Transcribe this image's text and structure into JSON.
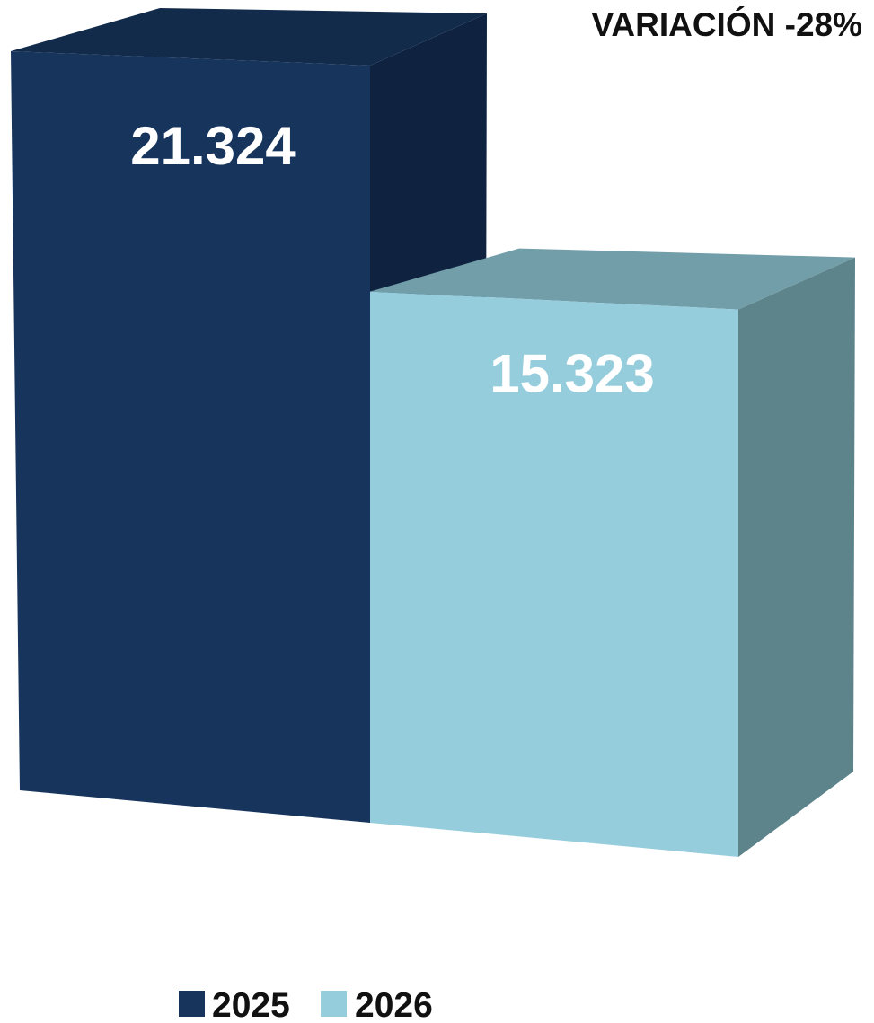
{
  "chart_data": {
    "type": "bar",
    "categories": [
      ""
    ],
    "series": [
      {
        "name": "2025",
        "values": [
          21324
        ],
        "label": "21.324",
        "color": "#17355c",
        "side_color": "#0f2340",
        "top_color": "#122b4b"
      },
      {
        "name": "2026",
        "values": [
          15323
        ],
        "label": "15.323",
        "color": "#96cddd",
        "side_color": "#5d838b",
        "top_color": "#729ea9"
      }
    ],
    "annotation": "VARIACIÓN  -28%",
    "legend_position": "bottom",
    "ylim": [
      0,
      21324
    ],
    "grid": false
  }
}
